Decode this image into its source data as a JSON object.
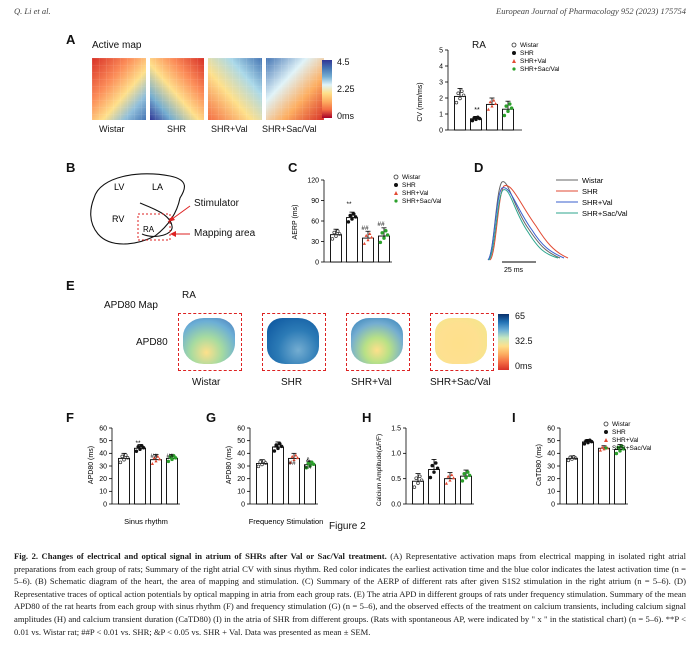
{
  "header": {
    "authors": "Q. Li et al.",
    "journal": "European Journal of Pharmacology 952 (2023) 175754"
  },
  "panelA": {
    "label": "A",
    "title": "Active map",
    "groups": [
      "Wistar",
      "SHR",
      "SHR+Val",
      "SHR+Sac/Val"
    ],
    "colorbar_ticks": [
      "4.5",
      "2.25",
      "0ms"
    ]
  },
  "panelA_cv": {
    "title": "RA",
    "ylabel": "CV (mm/ms)",
    "yticks": [
      "0",
      "1",
      "2",
      "3",
      "4",
      "5"
    ],
    "sig": "**",
    "legend": [
      "Wistar",
      "SHR",
      "SHR+Val",
      "SHR+Sac/Val"
    ]
  },
  "panelB": {
    "label": "B",
    "lv": "LV",
    "la": "LA",
    "rv": "RV",
    "ra": "RA",
    "stimulator": "Stimulator",
    "mapping": "Mapping area"
  },
  "panelC": {
    "label": "C",
    "ylabel": "AERP (ms)",
    "yticks": [
      "0",
      "30",
      "60",
      "90",
      "120"
    ],
    "sig": [
      "**",
      "##",
      "##"
    ],
    "legend": [
      "Wistar",
      "SHR",
      "SHR+Val",
      "SHR+Sac/Val"
    ]
  },
  "panelD": {
    "label": "D",
    "legend": [
      "Wistar",
      "SHR",
      "SHR+Val",
      "SHR+Sac/Val"
    ],
    "scale": "25 ms"
  },
  "panelE": {
    "label": "E",
    "ra": "RA",
    "map_title": "APD80 Map",
    "row_label": "APD80",
    "groups": [
      "Wistar",
      "SHR",
      "SHR+Val",
      "SHR+Sac/Val"
    ],
    "colorbar_ticks": [
      "65",
      "32.5",
      "0ms"
    ]
  },
  "panelF": {
    "label": "F",
    "ylabel": "APD80 (ms)",
    "yticks": [
      "0",
      "10",
      "20",
      "30",
      "40",
      "50",
      "60"
    ],
    "xlabel": "Sinus rhythm",
    "sig": [
      "**",
      "##",
      "##"
    ]
  },
  "panelG": {
    "label": "G",
    "ylabel": "APD80 (ms)",
    "yticks": [
      "0",
      "10",
      "20",
      "30",
      "40",
      "50",
      "60"
    ],
    "xlabel": "Frequency Stimulation",
    "sig": [
      "**",
      "##",
      "&",
      "##"
    ]
  },
  "panelH": {
    "label": "H",
    "ylabel": "Calcium Amplitude(ΔF/F)",
    "yticks": [
      "0.0",
      "0.5",
      "1.0",
      "1.5"
    ]
  },
  "panelI": {
    "label": "I",
    "ylabel": "CaTD80 (ms)",
    "yticks": [
      "0",
      "10",
      "20",
      "30",
      "40",
      "50",
      "60"
    ],
    "sig": "**",
    "legend": [
      "Wistar",
      "SHR",
      "SHR+Val",
      "SHR+Sac/Val"
    ]
  },
  "figure_label": "Figure 2",
  "caption": {
    "title": "Fig. 2.  Changes of electrical and optical signal in atrium of SHRs after Val or Sac/Val treatment.",
    "body": " (A) Representative activation maps from electrical mapping in isolated right atrial preparations from each group of rats; Summary of the right atrial CV with sinus rhythm. Red color indicates the earliest activation time and the blue color indicates the latest activation time (n = 5–6). (B) Schematic diagram of the heart, the area of mapping and stimulation. (C) Summary of the AERP of different rats after given S1S2 stimulation in the right atrium (n = 5–6). (D) Representative traces of optical action potentials by optical mapping in atria from each group rats. (E) The atria APD in different groups of rats under frequency stimulation. Summary of the mean APD80 of the rat hearts from each group with sinus rhythm (F) and frequency stimulation (G) (n = 5–6), and the observed effects of the treatment on calcium transients, including calcium signal amplitudes (H) and calcium transient duration (CaTD80) (I) in the atria of SHR from different groups. (Rats with spontaneous AP, were indicated by \" x \" in the statistical chart) (n = 5–6). **P < 0.01 vs. Wistar rat; ##P < 0.01 vs. SHR; &P < 0.05 vs. SHR + Val. Data was presented as mean ± SEM."
  },
  "colors": {
    "wistar": "#555555",
    "shr": "#e24a33",
    "val": "#3a5fcd",
    "sacval": "#2ca58d",
    "mapping_box": "#d22222"
  },
  "chart_data": [
    {
      "panel": "A",
      "type": "bar",
      "title": "RA",
      "ylabel": "CV (mm/ms)",
      "ylim": [
        0,
        5
      ],
      "categories": [
        "Wistar",
        "SHR",
        "SHR+Val",
        "SHR+Sac/Val"
      ],
      "values": [
        2.1,
        0.7,
        1.6,
        1.3
      ],
      "errors": [
        0.5,
        0.15,
        0.4,
        0.5
      ]
    },
    {
      "panel": "C",
      "type": "bar",
      "ylabel": "AERP (ms)",
      "ylim": [
        0,
        120
      ],
      "categories": [
        "Wistar",
        "SHR",
        "SHR+Val",
        "SHR+Sac/Val"
      ],
      "values": [
        40,
        65,
        35,
        38
      ],
      "errors": [
        8,
        8,
        10,
        12
      ]
    },
    {
      "panel": "F",
      "type": "bar",
      "ylabel": "APD80 (ms)",
      "xlabel": "Sinus rhythm",
      "ylim": [
        0,
        60
      ],
      "categories": [
        "Wistar",
        "SHR",
        "SHR+Val",
        "SHR+Sac/Val"
      ],
      "values": [
        36,
        44,
        35,
        36
      ],
      "errors": [
        4,
        3,
        4,
        3
      ]
    },
    {
      "panel": "G",
      "type": "bar",
      "ylabel": "APD80 (ms)",
      "xlabel": "Frequency Stimulation",
      "ylim": [
        0,
        60
      ],
      "categories": [
        "Wistar",
        "SHR",
        "SHR+Val",
        "SHR+Sac/Val"
      ],
      "values": [
        32,
        45,
        36,
        31
      ],
      "errors": [
        3,
        4,
        4,
        3
      ]
    },
    {
      "panel": "H",
      "type": "bar",
      "ylabel": "Calcium Amplitude(ΔF/F)",
      "ylim": [
        0,
        1.5
      ],
      "categories": [
        "Wistar",
        "SHR",
        "SHR+Val",
        "SHR+Sac/Val"
      ],
      "values": [
        0.45,
        0.68,
        0.5,
        0.55
      ],
      "errors": [
        0.15,
        0.2,
        0.12,
        0.12
      ]
    },
    {
      "panel": "I",
      "type": "bar",
      "ylabel": "CaTD80 (ms)",
      "ylim": [
        0,
        60
      ],
      "categories": [
        "Wistar",
        "SHR",
        "SHR+Val",
        "SHR+Sac/Val"
      ],
      "values": [
        36,
        49,
        44,
        43
      ],
      "errors": [
        2,
        2,
        2,
        4
      ]
    }
  ]
}
